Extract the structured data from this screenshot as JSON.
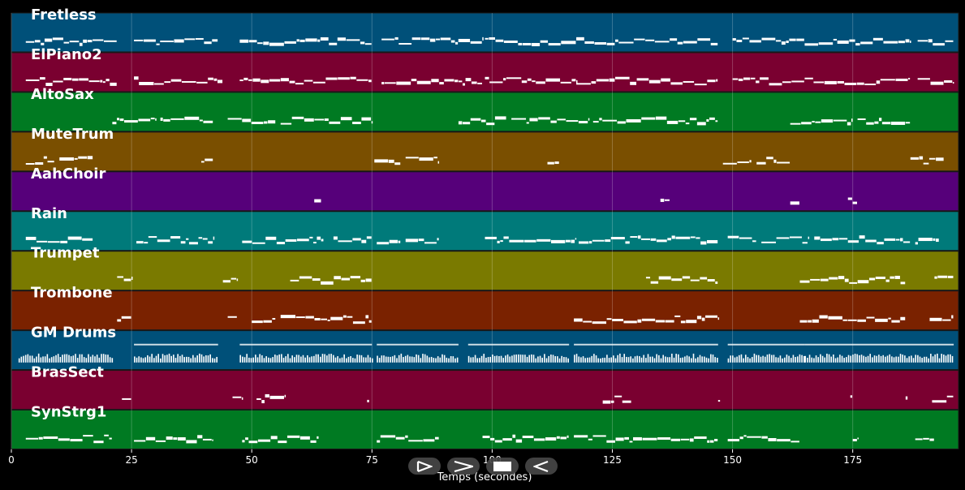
{
  "tracks": [
    {
      "name": "Fretless",
      "color": "#005079"
    },
    {
      "name": "ElPiano2",
      "color": "#7a0030"
    },
    {
      "name": "AltoSax",
      "color": "#007a22"
    },
    {
      "name": "MuteTrum",
      "color": "#7a4f00"
    },
    {
      "name": "AahChoir",
      "color": "#56007a"
    },
    {
      "name": "Rain",
      "color": "#007a7a"
    },
    {
      "name": "Trumpet",
      "color": "#7a7a00"
    },
    {
      "name": "Trombone",
      "color": "#7a2200"
    },
    {
      "name": "GM Drums",
      "color": "#005079"
    },
    {
      "name": "BrasSect",
      "color": "#7a0030"
    },
    {
      "name": "SynStrg1",
      "color": "#007a22"
    }
  ],
  "axis": {
    "xlabel": "Temps (secondes)",
    "ticks": [
      0,
      25,
      50,
      75,
      100,
      125,
      150,
      175
    ],
    "xlim": [
      0,
      197
    ]
  },
  "transport": [
    {
      "name": "play-icon"
    },
    {
      "name": "forward-icon"
    },
    {
      "name": "stop-icon"
    },
    {
      "name": "rewind-icon"
    }
  ],
  "chart_data": {
    "type": "piano-roll",
    "xlabel": "Temps (secondes)",
    "xlim": [
      0,
      197
    ],
    "note_color": "#ffffff",
    "tracks": [
      {
        "name": "Fretless",
        "segments": [
          [
            3,
            22
          ],
          [
            25.5,
            43
          ],
          [
            47.5,
            75
          ],
          [
            77,
            98
          ],
          [
            98.5,
            117.5
          ],
          [
            117.5,
            147
          ],
          [
            150,
            165
          ],
          [
            165,
            187
          ],
          [
            188.5,
            196
          ]
        ]
      },
      {
        "name": "ElPiano2",
        "segments": [
          [
            3,
            22
          ],
          [
            25.5,
            44
          ],
          [
            47.5,
            75
          ],
          [
            77,
            98
          ],
          [
            98.5,
            117.5
          ],
          [
            117.5,
            147
          ],
          [
            150,
            165
          ],
          [
            165,
            187
          ],
          [
            188.5,
            196
          ]
        ]
      },
      {
        "name": "AltoSax",
        "segments": [
          [
            21,
            30
          ],
          [
            31,
            42
          ],
          [
            45,
            55
          ],
          [
            56,
            75
          ],
          [
            93,
            103
          ],
          [
            104,
            120
          ],
          [
            121,
            147
          ],
          [
            162,
            175
          ],
          [
            176,
            187
          ]
        ]
      },
      {
        "name": "MuteTrum",
        "segments": [
          [
            3,
            9
          ],
          [
            10,
            17
          ],
          [
            39.5,
            42
          ],
          [
            75.5,
            81
          ],
          [
            82,
            89
          ],
          [
            111.5,
            114
          ],
          [
            148,
            154
          ],
          [
            155,
            162
          ],
          [
            187,
            194
          ]
        ]
      },
      {
        "name": "AahChoir",
        "segments": [
          [
            63,
            64.5
          ],
          [
            135,
            137
          ],
          [
            162,
            164
          ],
          [
            174,
            176
          ]
        ]
      },
      {
        "name": "Rain",
        "segments": [
          [
            3,
            17
          ],
          [
            26,
            42
          ],
          [
            48,
            65
          ],
          [
            67,
            75
          ],
          [
            76,
            81
          ],
          [
            82,
            89
          ],
          [
            98.5,
            117.5
          ],
          [
            118,
            147
          ],
          [
            149,
            155
          ],
          [
            156,
            166
          ],
          [
            167,
            187
          ],
          [
            188,
            193
          ]
        ]
      },
      {
        "name": "Trumpet",
        "segments": [
          [
            22,
            25
          ],
          [
            44,
            47
          ],
          [
            58,
            75
          ],
          [
            132,
            147
          ],
          [
            164,
            186
          ],
          [
            192,
            196
          ]
        ]
      },
      {
        "name": "Trombone",
        "segments": [
          [
            22,
            25
          ],
          [
            45,
            47
          ],
          [
            50,
            55
          ],
          [
            56,
            75
          ],
          [
            117,
            147
          ],
          [
            164,
            186
          ],
          [
            191,
            196
          ]
        ]
      },
      {
        "name": "GM Drums",
        "segments": [
          [
            1.5,
            21
          ],
          [
            25.5,
            43
          ],
          [
            47.5,
            75
          ],
          [
            76,
            93
          ],
          [
            95,
            116
          ],
          [
            117,
            147
          ],
          [
            149,
            165
          ],
          [
            165,
            196
          ]
        ]
      },
      {
        "name": "BrasSect",
        "segments": [
          [
            23,
            25
          ],
          [
            46,
            48
          ],
          [
            51,
            57
          ],
          [
            74,
            74.5
          ],
          [
            123,
            129
          ],
          [
            147,
            147.5
          ],
          [
            174.5,
            175
          ],
          [
            186,
            186.5
          ],
          [
            191.5,
            196
          ]
        ]
      },
      {
        "name": "SynStrg1",
        "segments": [
          [
            3,
            21
          ],
          [
            25.5,
            42
          ],
          [
            48,
            64
          ],
          [
            76,
            89
          ],
          [
            98,
            116
          ],
          [
            117,
            147
          ],
          [
            149,
            164
          ],
          [
            175,
            176
          ],
          [
            188,
            192
          ]
        ]
      }
    ]
  }
}
